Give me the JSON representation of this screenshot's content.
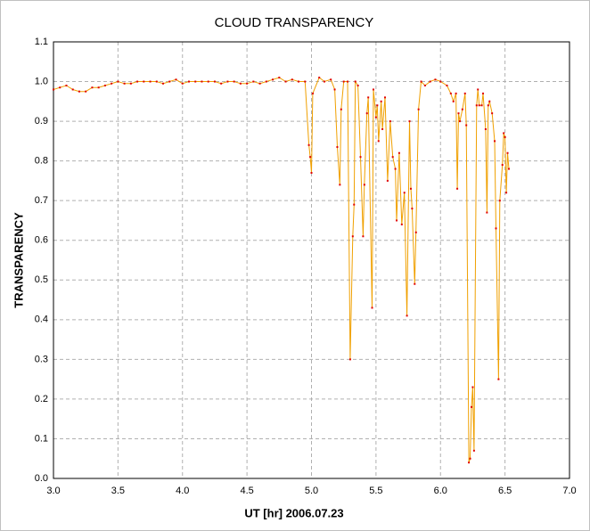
{
  "chart_data": {
    "type": "line",
    "title": "CLOUD TRANSPARENCY",
    "x_label": "UT [hr] 2006.07.23",
    "y_label": "TRANSPARENCY",
    "xlim": [
      3,
      7
    ],
    "ylim": [
      0,
      1.1
    ],
    "xticks": [
      {
        "value": 3,
        "label": "3.0"
      },
      3.5,
      {
        "value": 4,
        "label": "4.0"
      },
      4.5,
      {
        "value": 5,
        "label": "5.0"
      },
      5.5,
      {
        "value": 6,
        "label": "6.0"
      },
      6.5,
      {
        "value": 7,
        "label": "7.0"
      }
    ],
    "yticks": [
      {
        "value": 0,
        "label": "0.0"
      },
      0.1,
      0.2,
      0.3,
      0.4,
      0.5,
      0.6,
      0.7,
      0.8,
      0.9,
      {
        "value": 1,
        "label": "1.0"
      },
      1.1
    ],
    "grid": true,
    "series": [
      {
        "name": "TRANSPARENCY",
        "color": "#f0a000",
        "marker_color": "#e00000",
        "x": [
          3.0,
          3.05,
          3.1,
          3.15,
          3.2,
          3.25,
          3.3,
          3.35,
          3.4,
          3.45,
          3.5,
          3.55,
          3.6,
          3.65,
          3.7,
          3.75,
          3.8,
          3.85,
          3.9,
          3.95,
          4.0,
          4.05,
          4.1,
          4.15,
          4.2,
          4.25,
          4.3,
          4.35,
          4.4,
          4.45,
          4.5,
          4.55,
          4.6,
          4.65,
          4.7,
          4.75,
          4.8,
          4.85,
          4.9,
          4.95,
          4.98,
          4.99,
          5.0,
          5.01,
          5.06,
          5.1,
          5.15,
          5.18,
          5.2,
          5.22,
          5.23,
          5.25,
          5.28,
          5.3,
          5.32,
          5.33,
          5.34,
          5.36,
          5.38,
          5.4,
          5.41,
          5.43,
          5.44,
          5.47,
          5.48,
          5.5,
          5.51,
          5.52,
          5.54,
          5.55,
          5.57,
          5.59,
          5.61,
          5.63,
          5.65,
          5.66,
          5.68,
          5.7,
          5.72,
          5.74,
          5.76,
          5.77,
          5.78,
          5.8,
          5.81,
          5.83,
          5.85,
          5.88,
          5.92,
          5.96,
          6.0,
          6.05,
          6.08,
          6.1,
          6.12,
          6.13,
          6.14,
          6.15,
          6.17,
          6.19,
          6.2,
          6.22,
          6.23,
          6.24,
          6.25,
          6.26,
          6.28,
          6.29,
          6.3,
          6.32,
          6.33,
          6.35,
          6.36,
          6.37,
          6.38,
          6.4,
          6.42,
          6.43,
          6.45,
          6.46,
          6.48,
          6.49,
          6.5,
          6.51,
          6.52,
          6.53
        ],
        "values": [
          0.98,
          0.985,
          0.99,
          0.98,
          0.975,
          0.975,
          0.985,
          0.985,
          0.99,
          0.995,
          1.0,
          0.995,
          0.995,
          1.0,
          1.0,
          1.0,
          1.0,
          0.995,
          1.0,
          1.005,
          0.995,
          1.0,
          1.0,
          1.0,
          1.0,
          1.0,
          0.995,
          1.0,
          1.0,
          0.995,
          0.995,
          1.0,
          0.995,
          1.0,
          1.005,
          1.01,
          1.0,
          1.005,
          1.0,
          1.0,
          0.84,
          0.81,
          0.77,
          0.97,
          1.01,
          1.0,
          1.005,
          0.98,
          0.835,
          0.74,
          0.93,
          1.0,
          1.0,
          0.3,
          0.61,
          0.69,
          1.0,
          0.99,
          0.81,
          0.61,
          0.74,
          0.92,
          0.96,
          0.43,
          0.98,
          0.91,
          0.94,
          0.85,
          0.95,
          0.88,
          0.96,
          0.75,
          0.9,
          0.81,
          0.78,
          0.65,
          0.82,
          0.64,
          0.72,
          0.41,
          0.9,
          0.73,
          0.68,
          0.49,
          0.62,
          0.93,
          1.0,
          0.99,
          1.0,
          1.005,
          1.0,
          0.99,
          0.97,
          0.95,
          0.97,
          0.73,
          0.92,
          0.9,
          0.93,
          0.97,
          0.89,
          0.04,
          0.05,
          0.18,
          0.23,
          0.07,
          0.94,
          0.98,
          0.94,
          0.94,
          0.97,
          0.88,
          0.67,
          0.94,
          0.95,
          0.92,
          0.85,
          0.63,
          0.25,
          0.7,
          0.79,
          0.87,
          0.86,
          0.72,
          0.82,
          0.78
        ]
      }
    ]
  }
}
